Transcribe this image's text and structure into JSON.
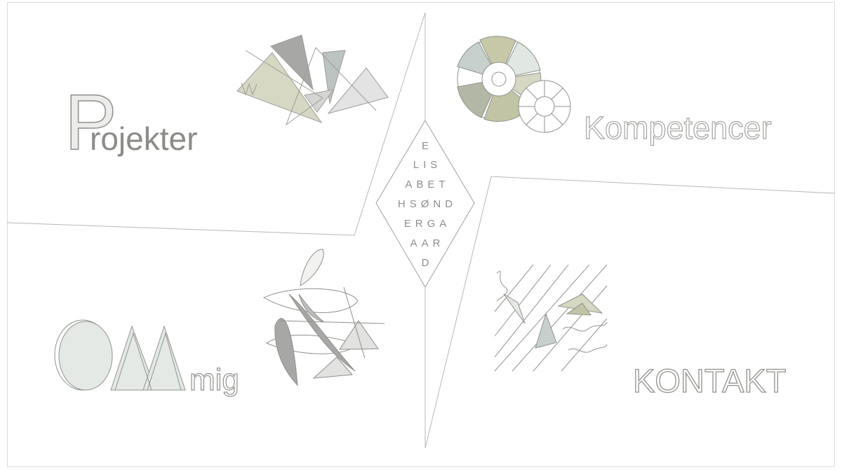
{
  "nav": {
    "projects": {
      "first_letter": "P",
      "rest": "rojekter"
    },
    "skills": {
      "label": "Kompetencer"
    },
    "about": {
      "word": "mig"
    },
    "contact": {
      "label": "KONTAKT"
    }
  },
  "logo": {
    "name_rows": [
      "E",
      "LIS",
      "ABET",
      "HSØND",
      "ERGA",
      "AAR",
      "D"
    ]
  },
  "colors": {
    "line": "#aeb0aa",
    "sage": "#d3d6c2",
    "olive": "#c2c4a6",
    "grey": "#a8a8a6",
    "mint": "#e4e9e6",
    "slate": "#c8d0cd",
    "text": "#9d9d9b"
  }
}
